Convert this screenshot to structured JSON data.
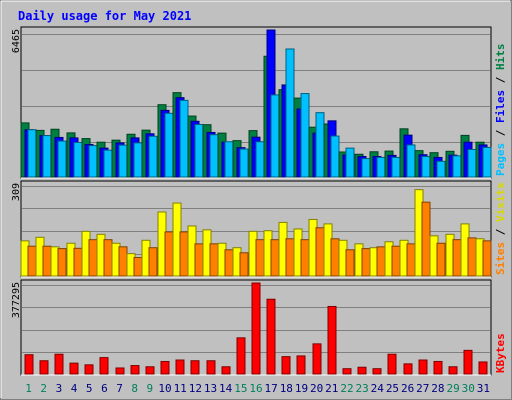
{
  "chart_data": [
    {
      "type": "bar",
      "title": "Daily usage for May 2021",
      "x": [
        "1",
        "2",
        "3",
        "4",
        "5",
        "6",
        "7",
        "8",
        "9",
        "10",
        "11",
        "12",
        "13",
        "14",
        "15",
        "16",
        "17",
        "18",
        "19",
        "20",
        "21",
        "22",
        "23",
        "24",
        "25",
        "26",
        "27",
        "28",
        "29",
        "30",
        "31"
      ],
      "weekend_days": [
        "1",
        "2",
        "8",
        "9",
        "15",
        "16",
        "22",
        "23",
        "29",
        "30"
      ],
      "ymax_label": "6465",
      "ylim": [
        0,
        6465
      ],
      "grid": true,
      "legend": "right",
      "series": [
        {
          "name": "Hits",
          "color": "#008040",
          "values": [
            2380,
            2050,
            2100,
            1940,
            1690,
            1530,
            1620,
            1880,
            2060,
            3180,
            3710,
            2680,
            2300,
            1930,
            1600,
            2040,
            5310,
            3840,
            3470,
            2190,
            2330,
            1100,
            1000,
            1110,
            1140,
            2120,
            1160,
            1070,
            1130,
            1830,
            1530
          ]
        },
        {
          "name": "Files",
          "color": "#0000ff",
          "values": [
            2080,
            1820,
            1740,
            1720,
            1430,
            1270,
            1500,
            1720,
            1900,
            2930,
            3490,
            2450,
            1960,
            1530,
            1290,
            1750,
            6465,
            4050,
            2990,
            1930,
            2470,
            970,
            900,
            900,
            950,
            1840,
            980,
            860,
            960,
            1530,
            1410
          ]
        },
        {
          "name": "Pages",
          "color": "#00c0ff",
          "values": [
            2080,
            1820,
            1580,
            1520,
            1380,
            1180,
            1400,
            1500,
            1790,
            2800,
            3370,
            2310,
            1860,
            1550,
            1230,
            1550,
            3610,
            5630,
            3670,
            2830,
            1800,
            1270,
            810,
            860,
            860,
            1410,
            900,
            690,
            930,
            1210,
            1300
          ]
        }
      ]
    },
    {
      "type": "bar",
      "ymax_label": "309",
      "ylim": [
        0,
        309
      ],
      "grid": true,
      "legend": "right",
      "series": [
        {
          "name": "Visits",
          "color": "#ffff00",
          "values": [
            118,
            130,
            98,
            110,
            150,
            140,
            110,
            75,
            120,
            215,
            245,
            168,
            155,
            110,
            95,
            150,
            152,
            180,
            158,
            190,
            175,
            120,
            108,
            95,
            115,
            120,
            290,
            135,
            140,
            175,
            125
          ]
        },
        {
          "name": "Sites",
          "color": "#ff8000",
          "values": [
            100,
            100,
            92,
            93,
            122,
            122,
            98,
            62,
            95,
            148,
            148,
            108,
            108,
            88,
            78,
            122,
            122,
            125,
            122,
            162,
            125,
            88,
            92,
            98,
            100,
            108,
            248,
            110,
            122,
            128,
            118
          ]
        }
      ]
    },
    {
      "type": "bar",
      "ymax_label": "377295",
      "ylim": [
        0,
        377295
      ],
      "grid": true,
      "legend": "right",
      "series": [
        {
          "name": "KBytes",
          "color": "#ff0000",
          "values": [
            80000,
            55000,
            82000,
            45000,
            38000,
            68000,
            25000,
            35000,
            30000,
            52000,
            58000,
            55000,
            55000,
            30000,
            150000,
            377295,
            310000,
            72000,
            75000,
            125000,
            280000,
            22000,
            28000,
            22000,
            82000,
            42000,
            58000,
            52000,
            30000,
            98000,
            50000
          ]
        }
      ]
    }
  ],
  "legend_divider": "/",
  "colors": {
    "panel_bg": "#c0c0c0",
    "frame_bg": "#c0c0c0",
    "title": "#0000ff",
    "weekday_label": "#000080",
    "weekend_label": "#00805c",
    "grid": "#808080"
  }
}
